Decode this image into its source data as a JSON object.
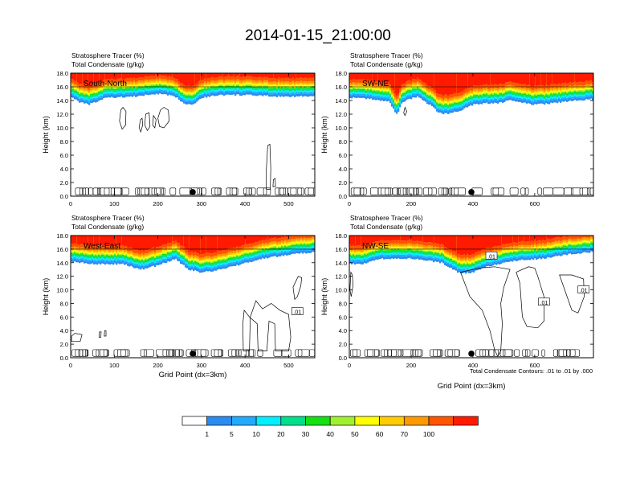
{
  "page_title": "2014-01-15_21:00:00",
  "colors": {
    "bands": [
      "#ffffff",
      "#2a8cf0",
      "#22aaff",
      "#00f0ff",
      "#00e08a",
      "#14e014",
      "#a0f030",
      "#ffff00",
      "#ffcc00",
      "#ff9900",
      "#ff5500",
      "#ff1a00"
    ],
    "axis": "#000000"
  },
  "chart_data": [
    {
      "type": "heatmap",
      "panel_label": "South-North",
      "title_line1": "Stratosphere Tracer   (%)",
      "title_line2": "Total Condensate   (g/kg)",
      "ylabel": "Height (km)",
      "xlabel": "",
      "xlim": [
        0,
        560
      ],
      "ylim": [
        0,
        18
      ],
      "xticks": [
        0,
        100,
        200,
        300,
        400,
        500
      ],
      "yticks": [
        "0.0",
        "2.0",
        "4.0",
        "6.0",
        "8.0",
        "10.0",
        "12.0",
        "14.0",
        "16.0",
        "18.0"
      ],
      "marker_x": 280,
      "tracer_base_km": [
        [
          0,
          14.6
        ],
        [
          20,
          13.8
        ],
        [
          40,
          13.4
        ],
        [
          60,
          13.8
        ],
        [
          80,
          14.4
        ],
        [
          150,
          14.6
        ],
        [
          200,
          15.0
        ],
        [
          240,
          14.6
        ],
        [
          260,
          13.6
        ],
        [
          280,
          13.4
        ],
        [
          300,
          14.4
        ],
        [
          340,
          14.8
        ],
        [
          400,
          14.8
        ],
        [
          470,
          14.6
        ],
        [
          560,
          14.6
        ]
      ],
      "contour_labels": []
    },
    {
      "type": "heatmap",
      "panel_label": "SW-NE",
      "title_line1": "Stratosphere Tracer   (%)",
      "title_line2": "Total Condensate   (g/kg)",
      "ylabel": "Height (km)",
      "xlabel": "",
      "xlim": [
        0,
        790
      ],
      "ylim": [
        0,
        18
      ],
      "xticks": [
        0,
        200,
        400,
        600
      ],
      "yticks": [
        "0.0",
        "2.0",
        "4.0",
        "6.0",
        "8.0",
        "10.0",
        "12.0",
        "14.0",
        "16.0",
        "18.0"
      ],
      "marker_x": 395,
      "tracer_base_km": [
        [
          0,
          14.4
        ],
        [
          80,
          14.2
        ],
        [
          130,
          13.8
        ],
        [
          155,
          11.8
        ],
        [
          170,
          13.8
        ],
        [
          220,
          14.6
        ],
        [
          260,
          13.4
        ],
        [
          290,
          12.2
        ],
        [
          320,
          12.0
        ],
        [
          360,
          12.6
        ],
        [
          400,
          13.4
        ],
        [
          440,
          13.6
        ],
        [
          480,
          13.6
        ],
        [
          520,
          14.0
        ],
        [
          600,
          13.4
        ],
        [
          660,
          13.6
        ],
        [
          720,
          14.0
        ],
        [
          790,
          14.2
        ]
      ],
      "contour_labels": []
    },
    {
      "type": "heatmap",
      "panel_label": "West-East",
      "title_line1": "Stratosphere Tracer   (%)",
      "title_line2": "Total Condensate   (g/kg)",
      "ylabel": "Height (km)",
      "xlabel": "Grid Point (dx=3km)",
      "xlim": [
        0,
        560
      ],
      "ylim": [
        0,
        18
      ],
      "xticks": [
        0,
        100,
        200,
        300,
        400,
        500
      ],
      "yticks": [
        "0.0",
        "2.0",
        "4.0",
        "6.0",
        "8.0",
        "10.0",
        "12.0",
        "14.0",
        "16.0",
        "18.0"
      ],
      "marker_x": 280,
      "tracer_base_km": [
        [
          0,
          14.2
        ],
        [
          60,
          13.8
        ],
        [
          120,
          13.8
        ],
        [
          160,
          13.0
        ],
        [
          200,
          13.6
        ],
        [
          240,
          14.6
        ],
        [
          270,
          13.0
        ],
        [
          300,
          12.6
        ],
        [
          330,
          12.8
        ],
        [
          380,
          13.6
        ],
        [
          440,
          14.6
        ],
        [
          500,
          15.2
        ],
        [
          560,
          15.6
        ]
      ],
      "contour_labels": [
        ".01"
      ]
    },
    {
      "type": "heatmap",
      "panel_label": "NW-SE",
      "title_line1": "Stratosphere Tracer   (%)",
      "title_line2": "Total Condensate   (g/kg)",
      "ylabel": "Height (km)",
      "xlabel": "Grid Point (dx=3km)",
      "xlim": [
        0,
        790
      ],
      "ylim": [
        0,
        18
      ],
      "xticks": [
        0,
        200,
        400,
        600
      ],
      "yticks": [
        "0.0",
        "2.0",
        "4.0",
        "6.0",
        "8.0",
        "10.0",
        "12.0",
        "14.0",
        "16.0",
        "18.0"
      ],
      "marker_x": 395,
      "tracer_base_km": [
        [
          0,
          13.8
        ],
        [
          40,
          13.8
        ],
        [
          100,
          14.6
        ],
        [
          200,
          14.6
        ],
        [
          300,
          14.0
        ],
        [
          360,
          12.4
        ],
        [
          400,
          12.6
        ],
        [
          440,
          13.4
        ],
        [
          500,
          14.0
        ],
        [
          560,
          14.4
        ],
        [
          620,
          14.6
        ],
        [
          700,
          15.2
        ],
        [
          790,
          15.6
        ]
      ],
      "contour_labels": [
        ".01",
        ".01",
        ".01"
      ],
      "footnote": "Total Condensate Contours: .01 to .01 by .000"
    }
  ],
  "colorbar": {
    "labels": [
      "1",
      "5",
      "10",
      "20",
      "30",
      "40",
      "50",
      "60",
      "70",
      "100"
    ]
  }
}
